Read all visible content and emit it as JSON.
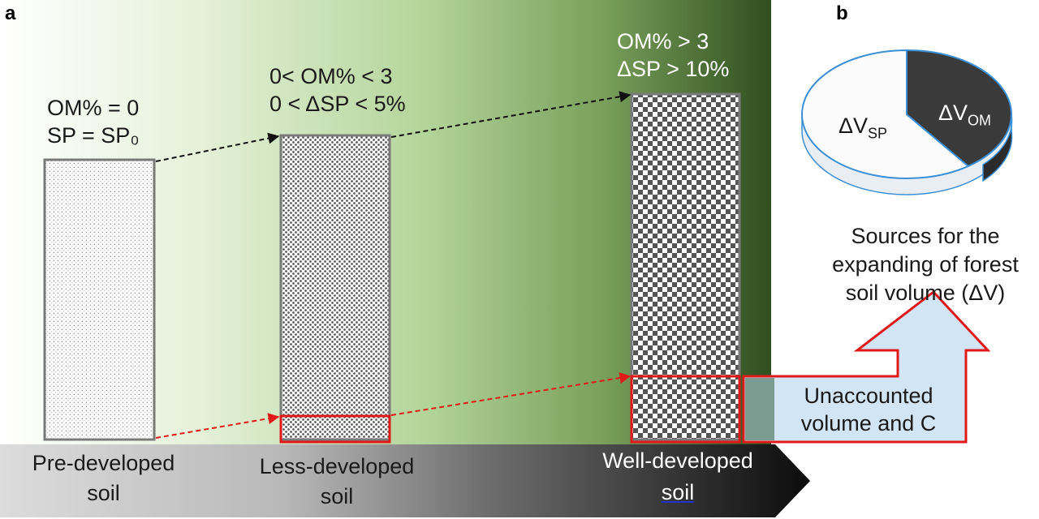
{
  "panels": {
    "a": "a",
    "b": "b"
  },
  "stages": [
    {
      "name": "Pre-developed soil",
      "label_line1": "Pre-developed",
      "label_line2": "soil",
      "cond_line1": "OM% = 0",
      "cond_line2": "SP = SP₀",
      "fill": "sparse-dots"
    },
    {
      "name": "Less-developed soil",
      "label_line1": "Less-developed",
      "label_line2": "soil",
      "cond_line1": "0< OM% < 3",
      "cond_line2": "0 < ΔSP < 5%",
      "fill": "dense-dots"
    },
    {
      "name": "Well-developed soil",
      "label_line1": "Well-developed",
      "label_line2": "soil",
      "cond_line1": "OM% > 3",
      "cond_line2": "ΔSP > 10%",
      "fill": "checkerboard"
    }
  ],
  "callout": {
    "line1": "Unaccounted",
    "line2": "volume and C"
  },
  "pie": {
    "slices": [
      {
        "label_main": "ΔV",
        "label_sub": "SP",
        "fraction": 0.6,
        "color": "#fbfbfb"
      },
      {
        "label_main": "ΔV",
        "label_sub": "OM",
        "fraction": 0.4,
        "color": "#3a3a3a"
      }
    ],
    "caption_line1": "Sources for the",
    "caption_line2": "expanding of forest",
    "caption_line3": "soil volume (ΔV)"
  },
  "colors": {
    "background_start": "#ffffff",
    "background_end": "#2f4f1f",
    "arrow_start": "#dcdcdc",
    "arrow_end": "#0c0c0c",
    "highlight": "#e01a1a",
    "callout_fill": "#cfe3f2",
    "pie_edge": "#3b8fd6"
  }
}
